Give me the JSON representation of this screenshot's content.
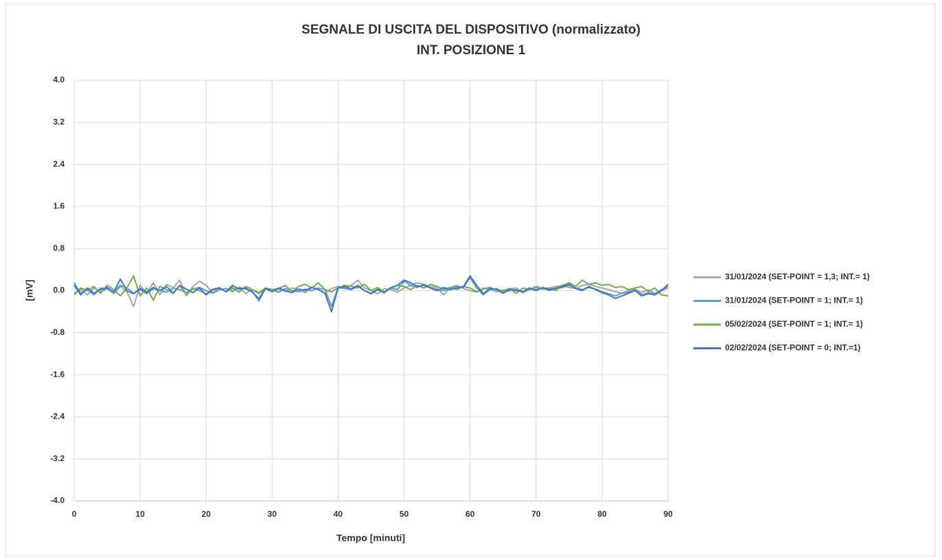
{
  "chart_data": {
    "type": "line",
    "title": "SEGNALE DI USCITA DEL DISPOSITIVO (normalizzato)",
    "subtitle": "INT. POSIZIONE 1",
    "x_label": "Tempo [minuti]",
    "y_label": "[mV]",
    "x": [
      0,
      1,
      2,
      3,
      4,
      5,
      6,
      7,
      8,
      9,
      10,
      11,
      12,
      13,
      14,
      15,
      16,
      17,
      18,
      19,
      20,
      21,
      22,
      23,
      24,
      25,
      26,
      27,
      28,
      29,
      30,
      31,
      32,
      33,
      34,
      35,
      36,
      37,
      38,
      39,
      40,
      41,
      42,
      43,
      44,
      45,
      46,
      47,
      48,
      49,
      50,
      51,
      52,
      53,
      54,
      55,
      56,
      57,
      58,
      59,
      60,
      61,
      62,
      63,
      64,
      65,
      66,
      67,
      68,
      69,
      70,
      71,
      72,
      73,
      74,
      75,
      76,
      77,
      78,
      79,
      80,
      81,
      82,
      83,
      84,
      85,
      86,
      87,
      88,
      89,
      90
    ],
    "series": [
      {
        "name": "31/01/2024 (SET-POINT = 1,3; INT.= 1)",
        "color": "#a5a5a5",
        "values": [
          -0.05,
          0.02,
          -0.08,
          0.05,
          -0.03,
          0.04,
          -0.06,
          0.08,
          -0.02,
          -0.3,
          0.1,
          -0.05,
          0.15,
          -0.08,
          0.12,
          0.05,
          0.2,
          -0.1,
          0.08,
          0.18,
          0.1,
          -0.04,
          0.06,
          -0.02,
          0.03,
          0.05,
          -0.05,
          0.02,
          -0.06,
          0.04,
          0.0,
          0.03,
          -0.02,
          0.05,
          0.02,
          -0.04,
          0.06,
          0.03,
          -0.05,
          0.04,
          0.08,
          0.06,
          0.1,
          0.2,
          0.05,
          0.0,
          -0.06,
          0.04,
          0.02,
          -0.03,
          0.05,
          0.1,
          0.15,
          0.12,
          0.08,
          0.05,
          -0.08,
          0.06,
          0.1,
          0.04,
          0.0,
          -0.03,
          0.05,
          0.02,
          -0.02,
          0.0,
          0.03,
          0.05,
          -0.04,
          0.02,
          0.06,
          0.03,
          0.05,
          0.08,
          0.1,
          0.06,
          0.04,
          0.1,
          0.12,
          0.08,
          0.05,
          0.02,
          -0.02,
          -0.05,
          0.0,
          0.03,
          -0.04,
          0.02,
          -0.06,
          0.0,
          0.05
        ]
      },
      {
        "name": "31/01/2024 (SET-POINT = 1; INT.= 1)",
        "color": "#5b9bd5",
        "values": [
          0.15,
          -0.05,
          0.02,
          -0.08,
          0.05,
          0.03,
          -0.02,
          0.1,
          0.05,
          -0.05,
          0.02,
          -0.06,
          0.04,
          0.0,
          -0.03,
          0.05,
          0.02,
          -0.04,
          0.03,
          0.06,
          0.0,
          -0.05,
          0.02,
          0.04,
          -0.02,
          0.06,
          0.03,
          -0.01,
          -0.2,
          0.05,
          0.02,
          -0.03,
          0.04,
          0.0,
          -0.02,
          0.03,
          0.0,
          0.05,
          0.02,
          -0.3,
          0.06,
          0.04,
          0.02,
          0.08,
          0.0,
          -0.05,
          0.03,
          -0.02,
          0.05,
          0.02,
          0.18,
          0.1,
          0.06,
          0.12,
          0.05,
          0.02,
          0.0,
          0.04,
          0.08,
          0.06,
          0.25,
          0.05,
          -0.08,
          0.02,
          0.04,
          -0.03,
          0.0,
          0.02,
          -0.02,
          0.03,
          0.02,
          0.05,
          0.0,
          0.04,
          0.06,
          0.1,
          0.05,
          0.02,
          0.06,
          0.03,
          -0.02,
          -0.06,
          -0.1,
          -0.05,
          -0.03,
          0.02,
          -0.08,
          -0.04,
          -0.06,
          0.02,
          0.08
        ]
      },
      {
        "name": "05/02/2024 (SET-POINT = 1; INT.= 1)",
        "color": "#70ad47",
        "values": [
          -0.08,
          0.05,
          0.0,
          0.08,
          -0.05,
          0.1,
          0.02,
          -0.1,
          0.05,
          0.28,
          -0.1,
          0.05,
          -0.18,
          0.08,
          0.02,
          -0.05,
          0.1,
          -0.08,
          0.04,
          0.0,
          -0.06,
          0.03,
          0.05,
          -0.02,
          0.06,
          -0.03,
          0.08,
          0.02,
          -0.04,
          0.05,
          0.02,
          0.04,
          0.1,
          -0.02,
          0.08,
          0.12,
          0.05,
          0.15,
          0.02,
          -0.02,
          0.05,
          0.1,
          0.08,
          0.05,
          0.12,
          0.0,
          0.06,
          -0.03,
          0.05,
          0.1,
          0.08,
          0.02,
          0.1,
          0.05,
          0.12,
          0.08,
          0.03,
          0.06,
          0.02,
          0.08,
          0.05,
          -0.02,
          0.03,
          0.06,
          0.02,
          0.0,
          0.04,
          -0.05,
          0.05,
          0.02,
          0.08,
          0.03,
          0.05,
          0.0,
          0.1,
          0.15,
          0.08,
          0.2,
          0.12,
          0.15,
          0.1,
          0.12,
          0.06,
          0.08,
          0.02,
          0.05,
          0.08,
          -0.02,
          0.05,
          -0.08,
          -0.1
        ]
      },
      {
        "name": "02/02/2024 (SET-POINT = 0; INT.=1)",
        "color": "#4472c4",
        "values": [
          0.1,
          -0.08,
          0.05,
          -0.05,
          0.02,
          0.06,
          -0.03,
          0.22,
          0.0,
          -0.06,
          0.04,
          -0.03,
          0.06,
          0.0,
          0.08,
          -0.05,
          0.1,
          0.03,
          -0.04,
          0.05,
          -0.08,
          0.02,
          0.05,
          -0.02,
          0.1,
          0.03,
          0.05,
          -0.03,
          -0.15,
          0.04,
          -0.02,
          0.05,
          0.0,
          -0.04,
          0.03,
          0.0,
          0.06,
          0.02,
          -0.05,
          -0.4,
          0.05,
          0.08,
          0.03,
          0.1,
          0.0,
          -0.06,
          0.02,
          -0.04,
          0.06,
          0.1,
          0.2,
          0.15,
          0.08,
          0.1,
          0.05,
          0.0,
          0.06,
          0.02,
          0.05,
          0.08,
          0.28,
          0.1,
          -0.06,
          0.04,
          0.02,
          -0.05,
          0.03,
          0.0,
          -0.02,
          0.05,
          0.0,
          0.06,
          0.02,
          0.05,
          0.08,
          0.12,
          0.04,
          0.0,
          0.08,
          0.02,
          -0.04,
          -0.08,
          -0.15,
          -0.1,
          -0.05,
          0.0,
          -0.1,
          -0.06,
          -0.08,
          0.0,
          0.12
        ]
      }
    ],
    "xlim": [
      0,
      90
    ],
    "xticks": [
      0,
      10,
      20,
      30,
      40,
      50,
      60,
      70,
      80,
      90
    ],
    "ylim": [
      -4,
      4
    ],
    "yticks": [
      {
        "value": -4,
        "label": "-4.0"
      },
      -3.2,
      -2.4,
      -1.6,
      -0.8,
      {
        "value": 0,
        "label": "0.0"
      },
      0.8,
      1.6,
      2.4,
      3.2,
      {
        "value": 4,
        "label": "4.0"
      }
    ],
    "grid": true,
    "legend": "right"
  }
}
